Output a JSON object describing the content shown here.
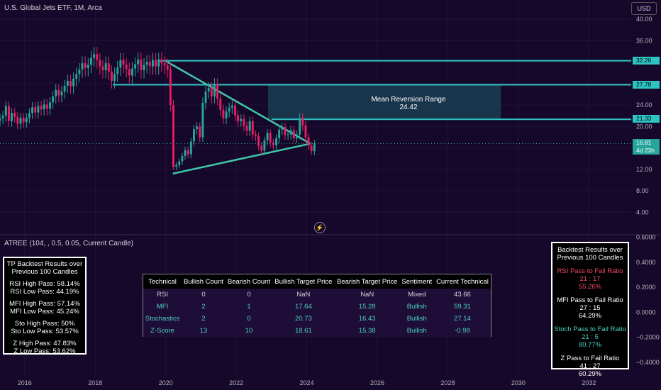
{
  "header": {
    "symbol_title": "U.S. Global Jets ETF, 1M, Arca",
    "currency_button": "USD"
  },
  "indicator": {
    "title": "ATREE (104, , 0.5, 0.05, Current Candle)"
  },
  "colors": {
    "background": "#16082a",
    "bull_candle": "#26a69a",
    "bear_candle": "#e91e63",
    "level_line": "#2ec4c4",
    "triangle_line": "#40c8a8",
    "range_box": "#1a3d52",
    "rsi_red": "#f2456a",
    "teal": "#4dd0c4"
  },
  "price_tags": [
    {
      "label": "32.26",
      "value": 32.26,
      "bg": "#2ec4c4",
      "fg": "#000"
    },
    {
      "label": "27.78",
      "value": 27.78,
      "bg": "#2ec4c4",
      "fg": "#000"
    },
    {
      "label": "21.33",
      "value": 21.33,
      "bg": "#2ec4c4",
      "fg": "#000"
    },
    {
      "label": "16.81",
      "sub": "4d 23h",
      "value": 16.81,
      "bg": "#26a69a",
      "fg": "#fff"
    }
  ],
  "mean_reversion": {
    "title": "Mean Reversion Range",
    "value_text": "24.42",
    "top": 27.78,
    "bottom": 21.33,
    "x_start": 2022.9,
    "x_end": 2029.5
  },
  "tp_backtest": {
    "title_lines": [
      "TP Backtest Results over",
      "Previous 100 Candles"
    ],
    "groups": [
      [
        "RSI High Pass: 58.14%",
        "RSI Low Pass: 44.19%"
      ],
      [
        "MFI High Pass: 57.14%",
        "MFI Low Pass: 45.24%"
      ],
      [
        "Sto High Pass: 50%",
        "Sto Low Pass: 53.57%"
      ],
      [
        "Z High Pass: 47.83%",
        "Z Low Pass: 53.62%"
      ]
    ]
  },
  "ratio_backtest": {
    "title_lines": [
      "Backtest Results over",
      "Previous 100 Candles"
    ],
    "groups": [
      {
        "lines": [
          "RSI Pass to Fail Ratio",
          "21 : 17",
          "55.26%"
        ],
        "color": "#f2456a"
      },
      {
        "lines": [
          "MFI Pass to Fail Ratio",
          "27 : 15",
          "64.29%"
        ],
        "color": "#ffffff"
      },
      {
        "lines": [
          "Stoch Pass to Fail Ratio",
          "21 : 5",
          "80.77%"
        ],
        "color": "#4dd0c4"
      },
      {
        "lines": [
          "Z Pass to Fail Ratio",
          "41 : 27",
          "60.29%"
        ],
        "color": "#ffffff"
      }
    ]
  },
  "tech_table": {
    "headers": [
      "Technical",
      "Bullish Count",
      "Bearish Count",
      "Bullish Target Price",
      "Bearish Target Price",
      "Sentiment",
      "Current Technical"
    ],
    "rows": [
      {
        "cells": [
          "RSI",
          "0",
          "0",
          "NaN",
          "NaN",
          "Mixed",
          "43.66"
        ],
        "color": "#d1d4dc"
      },
      {
        "cells": [
          "MFI",
          "2",
          "1",
          "17.64",
          "15.28",
          "Bullish",
          "59.31"
        ],
        "color": "#4dd0c4"
      },
      {
        "cells": [
          "Stochastics",
          "2",
          "0",
          "20.73",
          "16.43",
          "Bullish",
          "27.14"
        ],
        "color": "#4dd0c4"
      },
      {
        "cells": [
          "Z-Score",
          "13",
          "10",
          "18.61",
          "15.38",
          "Bullish",
          "-0.98"
        ],
        "color": "#4dd0c4"
      }
    ]
  },
  "chart_data": {
    "type": "candlestick",
    "title": "U.S. Global Jets ETF, 1M, Arca",
    "x_axis_years": [
      "2016",
      "2018",
      "2020",
      "2022",
      "2024",
      "2026",
      "2028",
      "2030",
      "2032"
    ],
    "xlim": [
      2015.3,
      2033.2
    ],
    "y_ticks_price": [
      "40.00",
      "36.00",
      "32.00",
      "28.00",
      "24.00",
      "20.00",
      "16.00",
      "12.00",
      "8.00",
      "4.00"
    ],
    "ylim_price": [
      1,
      42
    ],
    "y_ticks_indicator": [
      "0.6000",
      "0.4000",
      "0.2000",
      "0.0000",
      "−0.2000",
      "−0.4000"
    ],
    "ylim_indicator": [
      -0.48,
      0.62
    ],
    "horizontal_levels": [
      32.26,
      27.78,
      21.33
    ],
    "last_price": 16.81,
    "triangle": {
      "upper": [
        [
          2020.0,
          32.2
        ],
        [
          2024.1,
          16.8
        ]
      ],
      "lower": [
        [
          2020.2,
          11.2
        ],
        [
          2024.1,
          16.8
        ]
      ]
    },
    "wedge_line": {
      "from": [
        2018.5,
        27.78
      ],
      "to": [
        2020.0,
        27.78
      ]
    },
    "series_close": [
      21.5,
      22.0,
      23.8,
      21.0,
      22.5,
      21.8,
      20.5,
      21.6,
      20.8,
      21.6,
      22.5,
      23.6,
      22.6,
      23.8,
      23.2,
      24.1,
      23.3,
      24.5,
      25.6,
      26.8,
      25.8,
      26.5,
      27.6,
      28.5,
      27.5,
      28.9,
      29.8,
      30.6,
      31.8,
      30.9,
      31.5,
      32.8,
      33.5,
      32.4,
      31.2,
      30.5,
      31.8,
      30.2,
      28.5,
      29.8,
      31.0,
      32.4,
      31.5,
      30.7,
      29.5,
      30.8,
      31.6,
      32.5,
      30.5,
      31.5,
      32.0,
      31.2,
      32.4,
      31.2,
      32.5,
      31.8,
      31.4,
      30.6,
      24.0,
      12.5,
      12.8,
      13.5,
      14.5,
      15.6,
      14.8,
      17.2,
      19.5,
      20.0,
      18.0,
      24.4,
      26.5,
      27.2,
      25.6,
      27.9,
      25.2,
      23.1,
      21.5,
      22.8,
      23.5,
      23.9,
      22.1,
      21.0,
      21.4,
      20.1,
      19.2,
      21.0,
      18.5,
      18.2,
      16.4,
      15.5,
      17.4,
      18.8,
      17.0,
      16.5,
      17.8,
      19.4,
      19.9,
      18.4,
      18.5,
      19.3,
      17.8,
      18.5,
      21.6,
      20.2,
      18.0,
      16.4,
      15.4,
      16.81
    ]
  }
}
